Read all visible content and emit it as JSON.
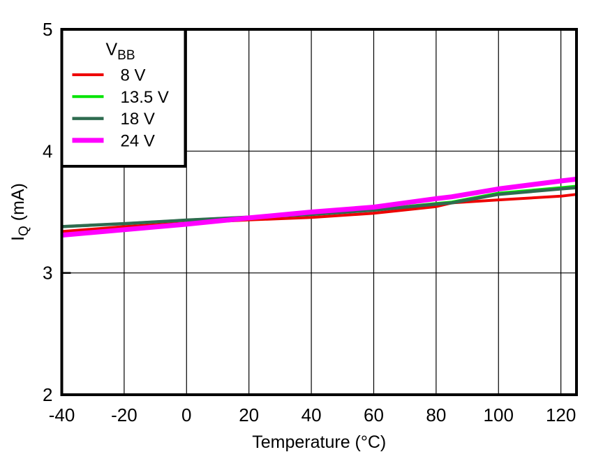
{
  "chart_data": {
    "type": "line",
    "title": "",
    "xlabel": "Temperature (°C)",
    "ylabel": {
      "main": "I",
      "sub": "Q",
      "rest": " (mA)"
    },
    "xlim": [
      -40,
      125
    ],
    "ylim": [
      2,
      5
    ],
    "xticks": [
      -40,
      -20,
      0,
      20,
      40,
      60,
      80,
      100,
      120
    ],
    "yticks": [
      2,
      3,
      4,
      5
    ],
    "grid": true,
    "legend": {
      "title_main": "V",
      "title_sub": "BB",
      "position": "top-left"
    },
    "x": [
      -40,
      -20,
      0,
      20,
      40,
      60,
      80,
      85,
      100,
      120,
      125
    ],
    "series": [
      {
        "name": "8 V",
        "color": "#ee0000",
        "width": 4,
        "values": [
          3.34,
          3.38,
          3.41,
          3.435,
          3.455,
          3.49,
          3.545,
          3.575,
          3.6,
          3.63,
          3.645
        ]
      },
      {
        "name": "13.5 V",
        "color": "#00e400",
        "width": 4,
        "values": [
          3.38,
          3.405,
          3.434,
          3.458,
          3.482,
          3.518,
          3.57,
          3.582,
          3.655,
          3.7,
          3.712
        ]
      },
      {
        "name": "18 V",
        "color": "#2e6b4f",
        "width": 4.5,
        "values": [
          3.38,
          3.405,
          3.434,
          3.458,
          3.48,
          3.515,
          3.565,
          3.575,
          3.645,
          3.69,
          3.7
        ]
      },
      {
        "name": "24 V",
        "color": "#ff00ff",
        "width": 7,
        "values": [
          3.31,
          3.355,
          3.4,
          3.452,
          3.5,
          3.54,
          3.61,
          3.625,
          3.69,
          3.755,
          3.77
        ]
      }
    ],
    "colors": {
      "axis": "#000000",
      "grid": "#000000",
      "background": "#ffffff"
    }
  }
}
